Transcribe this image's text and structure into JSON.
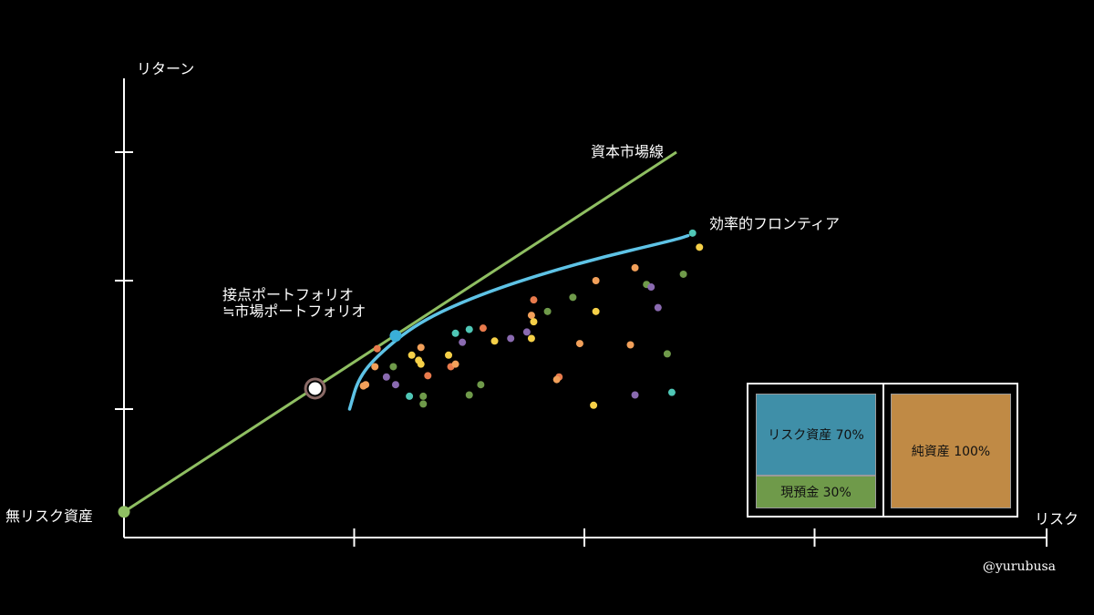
{
  "labels": {
    "y_axis": "リターン",
    "x_axis": "リスク",
    "risk_free": "無リスク資産",
    "cml": "資本市場線",
    "frontier": "効率的フロンティア",
    "tangent_line1": "接点ポートフォリオ",
    "tangent_line2": "≒市場ポートフォリオ",
    "credit": "@yurubusa"
  },
  "legend_box": {
    "risk_asset": "リスク資産 70%",
    "cash": "現預金 30%",
    "net_asset": "純資産 100%",
    "colors": {
      "risk_asset": "#3f8fa8",
      "cash": "#6f9a4a",
      "net_asset": "#c08a45"
    }
  },
  "colors": {
    "cml": "#8fbf62",
    "frontier": "#5ec3e6",
    "axis": "#ffffff"
  },
  "chart_data": {
    "type": "scatter",
    "xlim": [
      0,
      4
    ],
    "ylim": [
      0,
      4
    ],
    "xticks": [
      1,
      2,
      3
    ],
    "yticks": [
      1,
      2,
      3
    ],
    "risk_free_point": [
      0,
      0.2
    ],
    "cml_line": [
      [
        0,
        0.2
      ],
      [
        2.4,
        3.0
      ]
    ],
    "tangent_point": [
      1.18,
      1.57
    ],
    "market_point_marker": [
      0.83,
      1.16
    ],
    "frontier": [
      [
        0.98,
        1.0
      ],
      [
        1.02,
        1.25
      ],
      [
        1.12,
        1.45
      ],
      [
        1.3,
        1.7
      ],
      [
        1.6,
        1.93
      ],
      [
        2.0,
        2.15
      ],
      [
        2.4,
        2.32
      ],
      [
        2.45,
        2.35
      ]
    ],
    "points": [
      {
        "x": 1.04,
        "y": 1.18,
        "c": "#f2a05a"
      },
      {
        "x": 1.05,
        "y": 1.19,
        "c": "#f2a05a"
      },
      {
        "x": 1.1,
        "y": 1.47,
        "c": "#e87a4c"
      },
      {
        "x": 1.09,
        "y": 1.33,
        "c": "#f2a05a"
      },
      {
        "x": 1.14,
        "y": 1.25,
        "c": "#8a6ab0"
      },
      {
        "x": 1.17,
        "y": 1.33,
        "c": "#6f9a4a"
      },
      {
        "x": 1.18,
        "y": 1.19,
        "c": "#8a6ab0"
      },
      {
        "x": 1.24,
        "y": 1.1,
        "c": "#4fc7b6"
      },
      {
        "x": 1.25,
        "y": 1.42,
        "c": "#f6d048"
      },
      {
        "x": 1.28,
        "y": 1.38,
        "c": "#f6d048"
      },
      {
        "x": 1.29,
        "y": 1.48,
        "c": "#f2a05a"
      },
      {
        "x": 1.29,
        "y": 1.35,
        "c": "#f6d048"
      },
      {
        "x": 1.3,
        "y": 1.1,
        "c": "#6f9a4a"
      },
      {
        "x": 1.3,
        "y": 1.04,
        "c": "#6f9a4a"
      },
      {
        "x": 1.32,
        "y": 1.26,
        "c": "#e87a4c"
      },
      {
        "x": 1.41,
        "y": 1.42,
        "c": "#f6d048"
      },
      {
        "x": 1.42,
        "y": 1.33,
        "c": "#e87a4c"
      },
      {
        "x": 1.44,
        "y": 1.35,
        "c": "#f2a05a"
      },
      {
        "x": 1.44,
        "y": 1.59,
        "c": "#4fc7b6"
      },
      {
        "x": 1.47,
        "y": 1.52,
        "c": "#8a6ab0"
      },
      {
        "x": 1.5,
        "y": 1.62,
        "c": "#4fc7b6"
      },
      {
        "x": 1.5,
        "y": 1.11,
        "c": "#6f9a4a"
      },
      {
        "x": 1.55,
        "y": 1.19,
        "c": "#6f9a4a"
      },
      {
        "x": 1.56,
        "y": 1.63,
        "c": "#e87a4c"
      },
      {
        "x": 1.61,
        "y": 1.53,
        "c": "#f6d048"
      },
      {
        "x": 1.68,
        "y": 1.55,
        "c": "#8a6ab0"
      },
      {
        "x": 1.75,
        "y": 1.6,
        "c": "#8a6ab0"
      },
      {
        "x": 1.77,
        "y": 1.55,
        "c": "#f6d048"
      },
      {
        "x": 1.77,
        "y": 1.73,
        "c": "#f2a05a"
      },
      {
        "x": 1.78,
        "y": 1.68,
        "c": "#f6d048"
      },
      {
        "x": 1.78,
        "y": 1.85,
        "c": "#e87a4c"
      },
      {
        "x": 1.84,
        "y": 1.76,
        "c": "#6f9a4a"
      },
      {
        "x": 1.89,
        "y": 1.25,
        "c": "#e87a4c"
      },
      {
        "x": 1.88,
        "y": 1.23,
        "c": "#f2a05a"
      },
      {
        "x": 1.95,
        "y": 1.87,
        "c": "#6f9a4a"
      },
      {
        "x": 1.98,
        "y": 1.51,
        "c": "#f2a05a"
      },
      {
        "x": 2.05,
        "y": 1.76,
        "c": "#f6d048"
      },
      {
        "x": 2.05,
        "y": 2.0,
        "c": "#f2a05a"
      },
      {
        "x": 2.04,
        "y": 1.03,
        "c": "#f6d048"
      },
      {
        "x": 2.2,
        "y": 1.5,
        "c": "#f2a05a"
      },
      {
        "x": 2.22,
        "y": 2.1,
        "c": "#f2a05a"
      },
      {
        "x": 2.27,
        "y": 1.97,
        "c": "#6f9a4a"
      },
      {
        "x": 2.29,
        "y": 1.95,
        "c": "#8a6ab0"
      },
      {
        "x": 2.22,
        "y": 1.11,
        "c": "#8a6ab0"
      },
      {
        "x": 2.32,
        "y": 1.79,
        "c": "#8a6ab0"
      },
      {
        "x": 2.36,
        "y": 1.43,
        "c": "#6f9a4a"
      },
      {
        "x": 2.38,
        "y": 1.13,
        "c": "#4fc7b6"
      },
      {
        "x": 2.43,
        "y": 2.05,
        "c": "#6f9a4a"
      },
      {
        "x": 2.47,
        "y": 2.37,
        "c": "#4fc7b6"
      },
      {
        "x": 2.5,
        "y": 2.26,
        "c": "#f6d048"
      }
    ]
  }
}
